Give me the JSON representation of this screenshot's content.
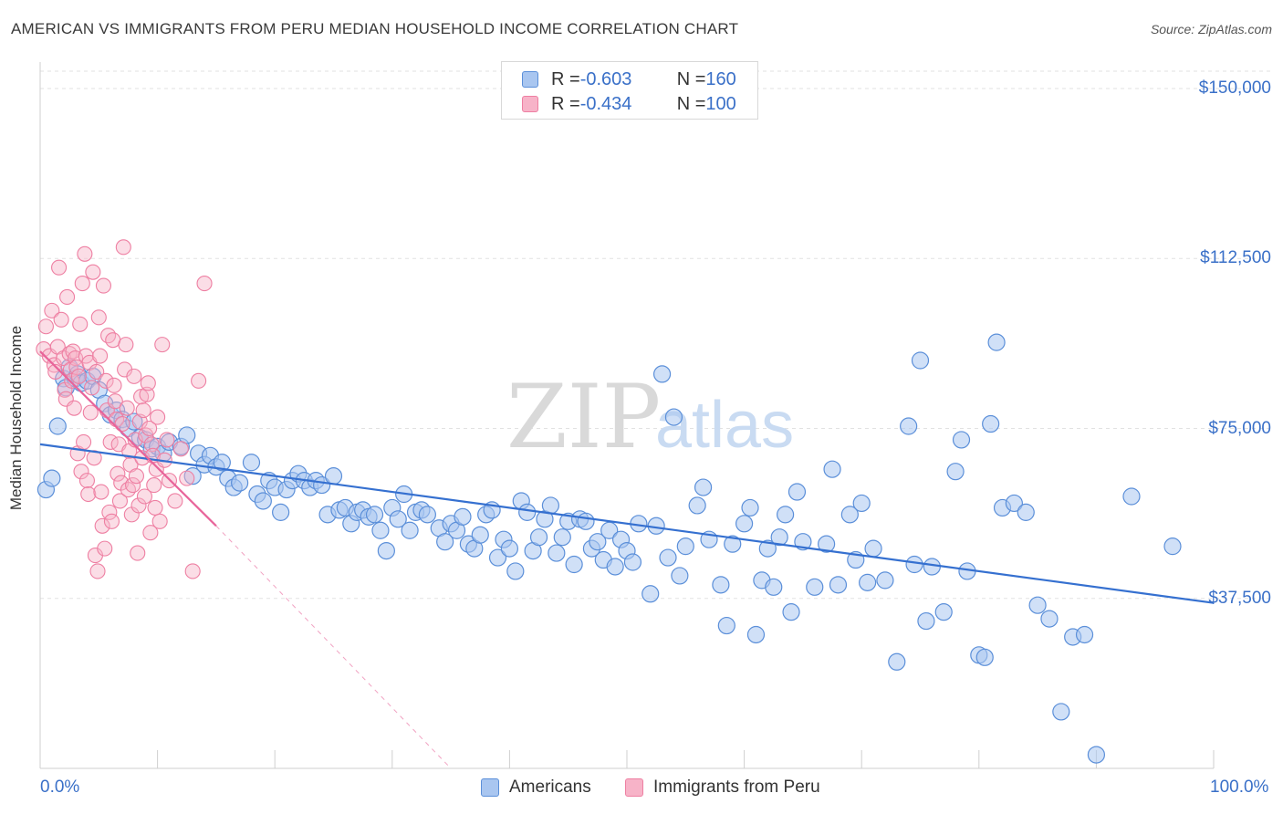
{
  "title": "AMERICAN VS IMMIGRANTS FROM PERU MEDIAN HOUSEHOLD INCOME CORRELATION CHART",
  "source": "Source: ZipAtlas.com",
  "watermark": {
    "zip": "ZIP",
    "atlas": "atlas"
  },
  "colors": {
    "americans_fill": "#a9c6f0",
    "americans_stroke": "#5b8fd9",
    "americans_line": "#3570d0",
    "peru_fill": "#f7b3c8",
    "peru_stroke": "#ee7fa2",
    "peru_line": "#e8649a",
    "axis_text": "#3a70c8",
    "grid": "#e2e2e2"
  },
  "legend": {
    "rows": [
      {
        "r_label": "R = ",
        "r_value": "-0.603",
        "n_label": "N = ",
        "n_value": "160"
      },
      {
        "r_label": "R = ",
        "r_value": "-0.434",
        "n_label": "N = ",
        "n_value": "100"
      }
    ]
  },
  "bottom_legend": {
    "americans": "Americans",
    "peru": "Immigrants from Peru"
  },
  "chart_data": {
    "type": "scatter",
    "title": "AMERICAN VS IMMIGRANTS FROM PERU MEDIAN HOUSEHOLD INCOME CORRELATION CHART",
    "xlabel": "",
    "ylabel": "Median Household Income",
    "xlim": [
      0,
      100
    ],
    "ylim": [
      0,
      150000
    ],
    "x_tick_labels": [
      "0.0%",
      "100.0%"
    ],
    "y_ticks": [
      37500,
      75000,
      112500,
      150000
    ],
    "y_tick_labels": [
      "$37,500",
      "$75,000",
      "$112,500",
      "$150,000"
    ],
    "grid": true,
    "legend_position": "top-center",
    "series": [
      {
        "name": "Americans",
        "r": -0.603,
        "n": 160,
        "trend": {
          "x": [
            0,
            100
          ],
          "y": [
            71500,
            36500
          ]
        },
        "points": [
          [
            0.5,
            61500
          ],
          [
            1.0,
            64000
          ],
          [
            1.5,
            75500
          ],
          [
            2.0,
            86000
          ],
          [
            2.2,
            84000
          ],
          [
            2.5,
            88500
          ],
          [
            3.0,
            86000
          ],
          [
            3.2,
            87000
          ],
          [
            3.5,
            85000
          ],
          [
            4.0,
            85500
          ],
          [
            4.5,
            86500
          ],
          [
            5.0,
            83500
          ],
          [
            5.5,
            80500
          ],
          [
            6.0,
            78000
          ],
          [
            6.5,
            79000
          ],
          [
            7.0,
            77000
          ],
          [
            7.5,
            75000
          ],
          [
            8.0,
            76500
          ],
          [
            8.5,
            73000
          ],
          [
            9.0,
            72500
          ],
          [
            9.5,
            70500
          ],
          [
            10.0,
            71000
          ],
          [
            10.5,
            69500
          ],
          [
            11.0,
            72000
          ],
          [
            12.0,
            71000
          ],
          [
            12.5,
            73500
          ],
          [
            13.0,
            64500
          ],
          [
            13.5,
            69500
          ],
          [
            14.0,
            67000
          ],
          [
            14.5,
            69000
          ],
          [
            15.0,
            66500
          ],
          [
            15.5,
            67500
          ],
          [
            16.0,
            64000
          ],
          [
            16.5,
            62000
          ],
          [
            17.0,
            63000
          ],
          [
            18.0,
            67500
          ],
          [
            18.5,
            60500
          ],
          [
            19.0,
            59000
          ],
          [
            19.5,
            63500
          ],
          [
            20.0,
            62000
          ],
          [
            20.5,
            56500
          ],
          [
            21.0,
            61500
          ],
          [
            21.5,
            63500
          ],
          [
            22.0,
            65000
          ],
          [
            22.5,
            63500
          ],
          [
            23.0,
            62000
          ],
          [
            23.5,
            63500
          ],
          [
            24.0,
            62500
          ],
          [
            24.5,
            56000
          ],
          [
            25.0,
            64500
          ],
          [
            25.5,
            57000
          ],
          [
            26.0,
            57500
          ],
          [
            26.5,
            54000
          ],
          [
            27.0,
            56500
          ],
          [
            27.5,
            57000
          ],
          [
            28.0,
            55500
          ],
          [
            28.5,
            56000
          ],
          [
            29.0,
            52500
          ],
          [
            29.5,
            48000
          ],
          [
            30.0,
            57500
          ],
          [
            30.5,
            55000
          ],
          [
            31.0,
            60500
          ],
          [
            31.5,
            52500
          ],
          [
            32.0,
            56500
          ],
          [
            32.5,
            57000
          ],
          [
            33.0,
            56000
          ],
          [
            34.0,
            53000
          ],
          [
            34.5,
            50000
          ],
          [
            35.0,
            54000
          ],
          [
            35.5,
            52500
          ],
          [
            36.0,
            55500
          ],
          [
            36.5,
            49500
          ],
          [
            37.0,
            48500
          ],
          [
            37.5,
            51500
          ],
          [
            38.0,
            56000
          ],
          [
            38.5,
            57000
          ],
          [
            39.0,
            46500
          ],
          [
            39.5,
            50500
          ],
          [
            40.0,
            48500
          ],
          [
            40.5,
            43500
          ],
          [
            41.0,
            59000
          ],
          [
            41.5,
            56500
          ],
          [
            42.0,
            48000
          ],
          [
            42.5,
            51000
          ],
          [
            43.0,
            55000
          ],
          [
            43.5,
            58000
          ],
          [
            44.0,
            47500
          ],
          [
            44.5,
            51000
          ],
          [
            45.0,
            54500
          ],
          [
            45.5,
            45000
          ],
          [
            46.0,
            55000
          ],
          [
            46.5,
            54500
          ],
          [
            47.0,
            48500
          ],
          [
            47.5,
            50000
          ],
          [
            48.0,
            46000
          ],
          [
            48.5,
            52500
          ],
          [
            49.0,
            44500
          ],
          [
            49.5,
            50500
          ],
          [
            50.0,
            48000
          ],
          [
            50.5,
            45500
          ],
          [
            51.0,
            54000
          ],
          [
            52.0,
            38500
          ],
          [
            52.5,
            53500
          ],
          [
            53.0,
            87000
          ],
          [
            53.5,
            46500
          ],
          [
            54.0,
            77500
          ],
          [
            54.5,
            42500
          ],
          [
            55.0,
            49000
          ],
          [
            56.0,
            58000
          ],
          [
            56.5,
            62000
          ],
          [
            57.0,
            50500
          ],
          [
            58.0,
            40500
          ],
          [
            58.5,
            31500
          ],
          [
            59.0,
            49500
          ],
          [
            60.0,
            54000
          ],
          [
            60.5,
            57500
          ],
          [
            61.0,
            29500
          ],
          [
            61.5,
            41500
          ],
          [
            62.0,
            48500
          ],
          [
            62.5,
            40000
          ],
          [
            63.0,
            51000
          ],
          [
            63.5,
            56000
          ],
          [
            64.0,
            34500
          ],
          [
            64.5,
            61000
          ],
          [
            65.0,
            50000
          ],
          [
            66.0,
            40000
          ],
          [
            67.0,
            49500
          ],
          [
            67.5,
            66000
          ],
          [
            68.0,
            40500
          ],
          [
            69.0,
            56000
          ],
          [
            69.5,
            46000
          ],
          [
            70.0,
            58500
          ],
          [
            70.5,
            41000
          ],
          [
            71.0,
            48500
          ],
          [
            72.0,
            41500
          ],
          [
            73.0,
            23500
          ],
          [
            74.0,
            75500
          ],
          [
            74.5,
            45000
          ],
          [
            75.0,
            90000
          ],
          [
            75.5,
            32500
          ],
          [
            76.0,
            44500
          ],
          [
            77.0,
            34500
          ],
          [
            78.0,
            65500
          ],
          [
            78.5,
            72500
          ],
          [
            79.0,
            43500
          ],
          [
            80.0,
            25000
          ],
          [
            80.5,
            24500
          ],
          [
            81.0,
            76000
          ],
          [
            81.5,
            94000
          ],
          [
            82.0,
            57500
          ],
          [
            83.0,
            58500
          ],
          [
            84.0,
            56500
          ],
          [
            85.0,
            36000
          ],
          [
            86.0,
            33000
          ],
          [
            87.0,
            12500
          ],
          [
            88.0,
            29000
          ],
          [
            89.0,
            29500
          ],
          [
            90.0,
            3000
          ],
          [
            93.0,
            60000
          ],
          [
            96.5,
            49000
          ]
        ]
      },
      {
        "name": "Immigrants from Peru",
        "r": -0.434,
        "n": 100,
        "trend": {
          "x": [
            0,
            15
          ],
          "y": [
            92000,
            53500
          ]
        },
        "trend_dashed": {
          "x": [
            15,
            35
          ],
          "y": [
            53500,
            0
          ]
        },
        "points": [
          [
            0.3,
            92500
          ],
          [
            0.5,
            97500
          ],
          [
            0.8,
            91000
          ],
          [
            1.0,
            101000
          ],
          [
            1.2,
            89000
          ],
          [
            1.3,
            87500
          ],
          [
            1.5,
            93000
          ],
          [
            1.6,
            110500
          ],
          [
            1.8,
            99000
          ],
          [
            2.0,
            90500
          ],
          [
            2.1,
            83500
          ],
          [
            2.2,
            81500
          ],
          [
            2.3,
            104000
          ],
          [
            2.5,
            91500
          ],
          [
            2.6,
            88000
          ],
          [
            2.7,
            85500
          ],
          [
            2.8,
            92000
          ],
          [
            2.9,
            79500
          ],
          [
            3.0,
            90500
          ],
          [
            3.1,
            88500
          ],
          [
            3.2,
            69500
          ],
          [
            3.3,
            86500
          ],
          [
            3.4,
            98000
          ],
          [
            3.5,
            65500
          ],
          [
            3.6,
            107000
          ],
          [
            3.7,
            72000
          ],
          [
            3.8,
            113500
          ],
          [
            3.9,
            91000
          ],
          [
            4.0,
            63500
          ],
          [
            4.1,
            60500
          ],
          [
            4.2,
            89500
          ],
          [
            4.3,
            78500
          ],
          [
            4.4,
            84000
          ],
          [
            4.5,
            109500
          ],
          [
            4.6,
            68500
          ],
          [
            4.7,
            47000
          ],
          [
            4.8,
            87500
          ],
          [
            4.9,
            43500
          ],
          [
            5.0,
            99500
          ],
          [
            5.1,
            91000
          ],
          [
            5.2,
            61000
          ],
          [
            5.3,
            53500
          ],
          [
            5.4,
            106500
          ],
          [
            5.5,
            48500
          ],
          [
            5.6,
            85500
          ],
          [
            5.7,
            79000
          ],
          [
            5.8,
            95500
          ],
          [
            5.9,
            56500
          ],
          [
            6.0,
            72000
          ],
          [
            6.1,
            54500
          ],
          [
            6.2,
            94500
          ],
          [
            6.3,
            84500
          ],
          [
            6.4,
            81000
          ],
          [
            6.5,
            77000
          ],
          [
            6.6,
            65000
          ],
          [
            6.7,
            71500
          ],
          [
            6.8,
            59000
          ],
          [
            6.9,
            63000
          ],
          [
            7.0,
            76000
          ],
          [
            7.1,
            115000
          ],
          [
            7.2,
            88000
          ],
          [
            7.3,
            93500
          ],
          [
            7.4,
            79500
          ],
          [
            7.5,
            61500
          ],
          [
            7.6,
            70000
          ],
          [
            7.7,
            67000
          ],
          [
            7.8,
            56000
          ],
          [
            7.9,
            62500
          ],
          [
            8.0,
            86500
          ],
          [
            8.1,
            72500
          ],
          [
            8.2,
            64500
          ],
          [
            8.3,
            47500
          ],
          [
            8.4,
            58000
          ],
          [
            8.5,
            76500
          ],
          [
            8.6,
            82000
          ],
          [
            8.7,
            68500
          ],
          [
            8.8,
            79000
          ],
          [
            8.9,
            60000
          ],
          [
            9.0,
            73500
          ],
          [
            9.1,
            82500
          ],
          [
            9.2,
            85000
          ],
          [
            9.3,
            75000
          ],
          [
            9.4,
            52000
          ],
          [
            9.5,
            71500
          ],
          [
            9.6,
            69000
          ],
          [
            9.7,
            62500
          ],
          [
            9.8,
            57500
          ],
          [
            9.9,
            66000
          ],
          [
            10.0,
            77500
          ],
          [
            10.2,
            54500
          ],
          [
            10.4,
            93500
          ],
          [
            10.6,
            68000
          ],
          [
            10.8,
            72500
          ],
          [
            11.0,
            63500
          ],
          [
            11.5,
            59000
          ],
          [
            12.0,
            70500
          ],
          [
            12.5,
            64000
          ],
          [
            13.0,
            43500
          ],
          [
            13.5,
            85500
          ],
          [
            14.0,
            107000
          ]
        ]
      }
    ]
  }
}
